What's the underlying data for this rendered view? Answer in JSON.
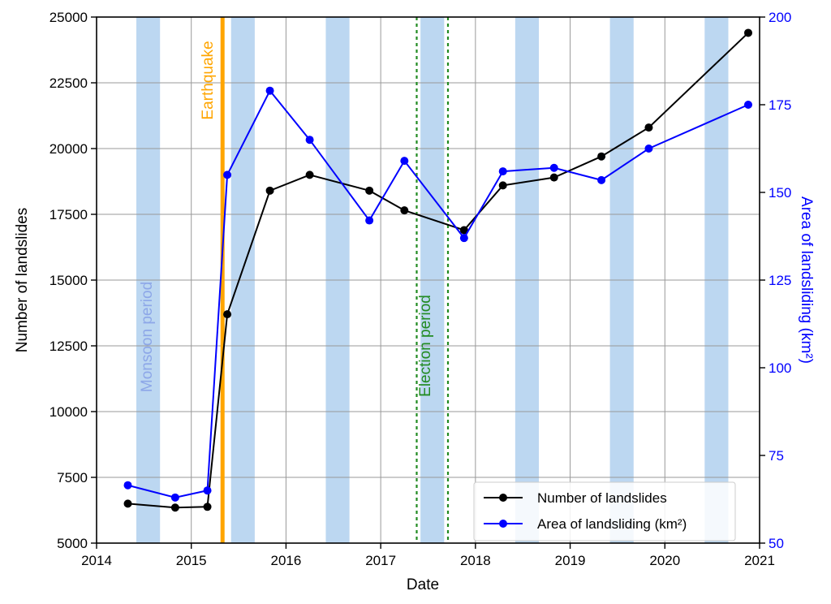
{
  "chart_data": {
    "type": "line",
    "xlabel": "Date",
    "ylabel_left": "Number of landslides",
    "ylabel_right": "Area of landsliding (km²)",
    "xlim": [
      2014,
      2021
    ],
    "ylim_left": [
      5000,
      25000
    ],
    "ylim_right": [
      50,
      200
    ],
    "x_ticks": [
      "2014",
      "2015",
      "2016",
      "2017",
      "2018",
      "2019",
      "2020",
      "2021"
    ],
    "y_ticks_left": [
      "5000",
      "7500",
      "10000",
      "12500",
      "15000",
      "17500",
      "20000",
      "22500",
      "25000"
    ],
    "y_ticks_right": [
      "50",
      "75",
      "100",
      "125",
      "150",
      "175",
      "200"
    ],
    "grid": true,
    "legend_position": "lower-right",
    "colors": {
      "number": "#000000",
      "area": "#0000ff",
      "monsoon": "#bcd7f1",
      "earthquake": "#ffa500",
      "election": "#228b22",
      "right_axis": "#0000ff"
    },
    "monsoon_periods": [
      [
        2014.42,
        2014.67
      ],
      [
        2015.42,
        2015.67
      ],
      [
        2016.42,
        2016.67
      ],
      [
        2017.42,
        2017.67
      ],
      [
        2018.42,
        2018.67
      ],
      [
        2019.42,
        2019.67
      ],
      [
        2020.42,
        2020.67
      ]
    ],
    "earthquake_date": 2015.33,
    "election_period": [
      2017.38,
      2017.71
    ],
    "annotations": {
      "monsoon": "Monsoon period",
      "earthquake": "Earthquake",
      "election": "Election period"
    },
    "series": [
      {
        "name": "Number of landslides",
        "axis": "left",
        "x": [
          2014.33,
          2014.83,
          2015.17,
          2015.38,
          2015.83,
          2016.25,
          2016.88,
          2017.25,
          2017.88,
          2018.29,
          2018.83,
          2019.33,
          2019.83,
          2020.88
        ],
        "y": [
          6500,
          6350,
          6380,
          13700,
          18400,
          19000,
          18400,
          17650,
          16900,
          18600,
          18900,
          19700,
          20800,
          24400
        ]
      },
      {
        "name": "Area of landsliding (km²)",
        "axis": "right",
        "x": [
          2014.33,
          2014.83,
          2015.17,
          2015.38,
          2015.83,
          2016.25,
          2016.88,
          2017.25,
          2017.88,
          2018.29,
          2018.83,
          2019.33,
          2019.83,
          2020.88
        ],
        "y": [
          66.5,
          63,
          65,
          155,
          179,
          165,
          142,
          159,
          137,
          156,
          157,
          153.5,
          162.5,
          175
        ]
      }
    ]
  }
}
